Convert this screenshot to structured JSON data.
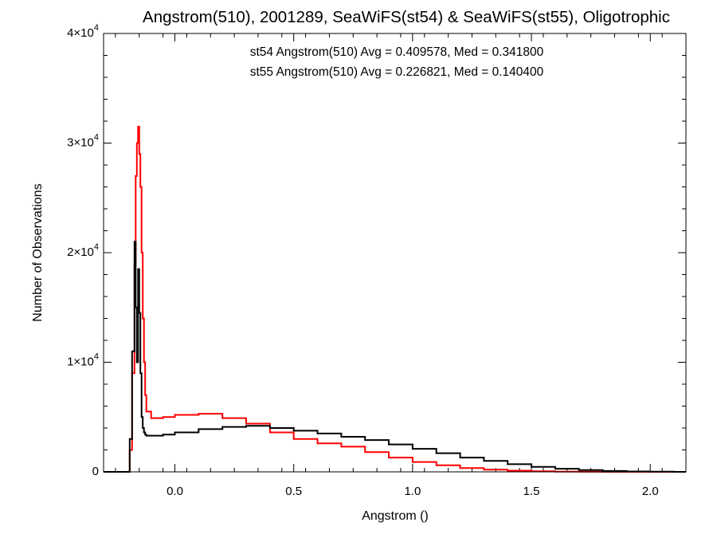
{
  "chart_data": {
    "type": "histogram",
    "title": "Angstrom(510), 2001289, SeaWiFS(st54) & SeaWiFS(st55), Oligotrophic",
    "xlabel": "Angstrom ()",
    "ylabel": "Number of Observations",
    "xlim": [
      -0.3,
      2.15
    ],
    "ylim": [
      0,
      40000
    ],
    "x_ticks": [
      0.0,
      0.5,
      1.0,
      1.5,
      2.0
    ],
    "x_tick_labels": [
      "0.0",
      "0.5",
      "1.0",
      "1.5",
      "2.0"
    ],
    "y_ticks": [
      0,
      10000,
      20000,
      30000,
      40000
    ],
    "y_tick_labels": [
      {
        "mantissa": "0",
        "exponent": ""
      },
      {
        "mantissa": "1×10",
        "exponent": "4"
      },
      {
        "mantissa": "2×10",
        "exponent": "4"
      },
      {
        "mantissa": "3×10",
        "exponent": "4"
      },
      {
        "mantissa": "4×10",
        "exponent": "4"
      }
    ],
    "annotations": [
      {
        "text": "st54 Angstrom(510) Avg = 0.409578, Med = 0.341800",
        "color": "#000000"
      },
      {
        "text": "st55 Angstrom(510) Avg = 0.226821, Med = 0.140400",
        "color": "#ff0000"
      }
    ],
    "series": [
      {
        "name": "st54",
        "color": "#000000",
        "x": [
          -0.3,
          -0.19,
          -0.18,
          -0.17,
          -0.165,
          -0.16,
          -0.155,
          -0.15,
          -0.145,
          -0.14,
          -0.135,
          -0.13,
          -0.125,
          -0.12,
          -0.05,
          0.0,
          0.1,
          0.2,
          0.3,
          0.4,
          0.5,
          0.6,
          0.7,
          0.8,
          0.9,
          1.0,
          1.1,
          1.2,
          1.3,
          1.4,
          1.5,
          1.6,
          1.7,
          1.8,
          1.9,
          2.0,
          2.1,
          2.15
        ],
        "values": [
          0,
          3000,
          11000,
          21000,
          15000,
          10000,
          18500,
          14500,
          9000,
          5000,
          4000,
          3600,
          3400,
          3300,
          3400,
          3600,
          3900,
          4100,
          4200,
          4000,
          3750,
          3500,
          3200,
          2900,
          2500,
          2100,
          1700,
          1300,
          1000,
          700,
          450,
          280,
          160,
          80,
          40,
          15,
          0,
          0
        ]
      },
      {
        "name": "st55",
        "color": "#ff0000",
        "x": [
          -0.3,
          -0.19,
          -0.18,
          -0.17,
          -0.165,
          -0.16,
          -0.155,
          -0.15,
          -0.145,
          -0.14,
          -0.135,
          -0.13,
          -0.125,
          -0.12,
          -0.1,
          -0.05,
          0.0,
          0.1,
          0.2,
          0.3,
          0.4,
          0.5,
          0.6,
          0.7,
          0.8,
          0.9,
          1.0,
          1.1,
          1.2,
          1.3,
          1.4,
          1.5,
          1.6,
          1.7,
          1.8,
          2.15
        ],
        "values": [
          0,
          2000,
          9000,
          19000,
          27000,
          30000,
          31500,
          29000,
          26000,
          20000,
          14000,
          10000,
          7000,
          5500,
          4900,
          5000,
          5200,
          5300,
          4900,
          4400,
          3600,
          3000,
          2600,
          2300,
          1800,
          1300,
          900,
          600,
          350,
          200,
          110,
          60,
          25,
          10,
          0,
          0
        ]
      }
    ]
  }
}
